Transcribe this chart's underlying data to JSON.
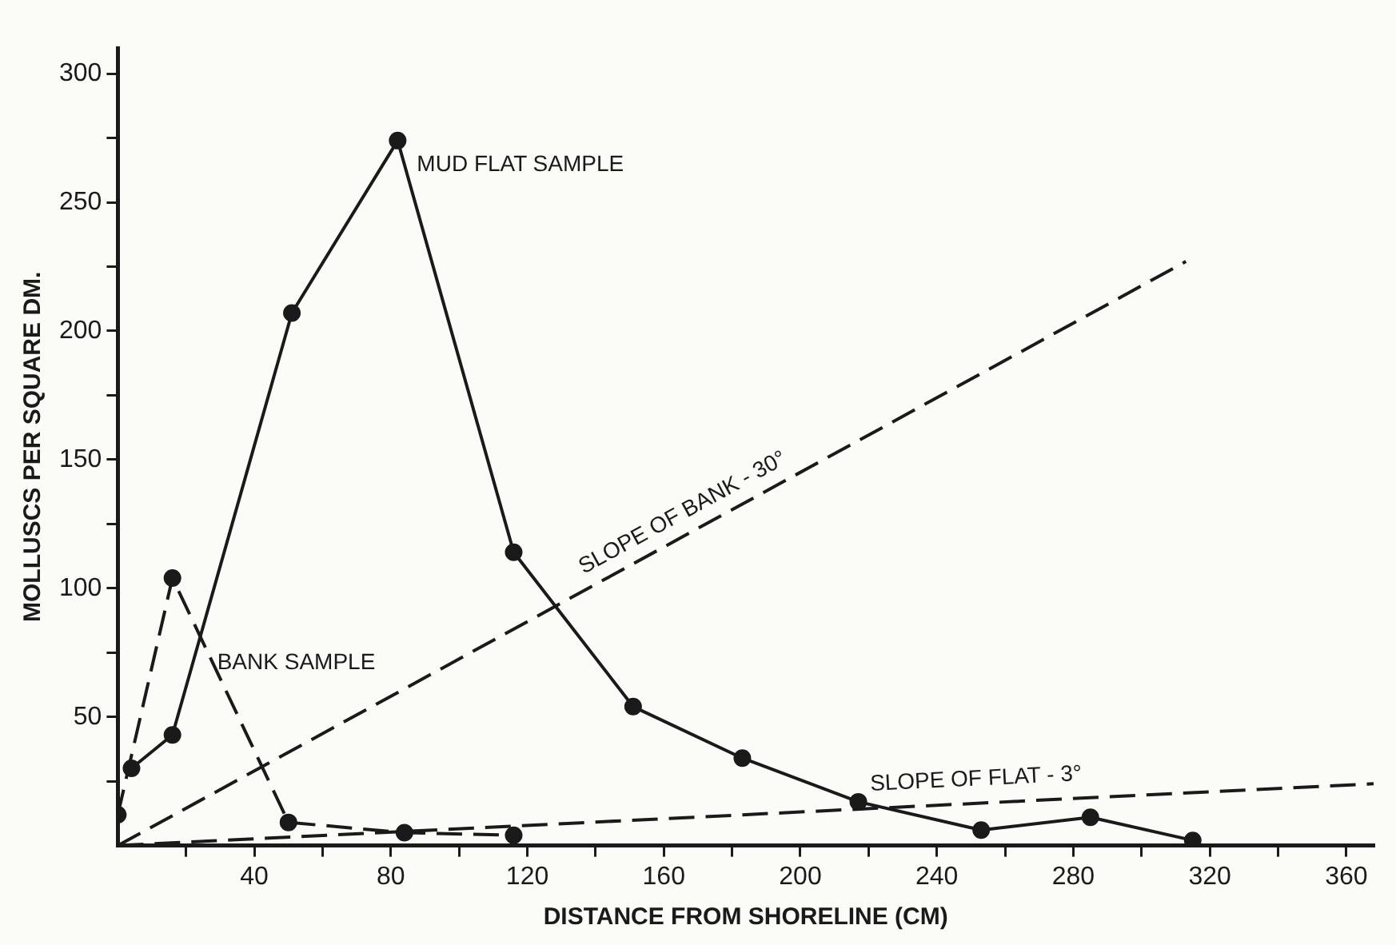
{
  "chart_data": {
    "type": "line",
    "xlabel": "DISTANCE FROM SHORELINE (CM)",
    "ylabel": "MOLLUSCS PER SQUARE DM.",
    "series": [
      {
        "name": "MUD FLAT SAMPLE",
        "color": "#1a1a1a",
        "x": [
          4,
          16,
          51,
          82,
          116,
          151,
          183,
          217,
          253,
          285,
          315
        ],
        "values": [
          30,
          43,
          207,
          274,
          114,
          54,
          34,
          17,
          6,
          11,
          2
        ],
        "marker": "circle",
        "line_style": "solid"
      },
      {
        "name": "BANK SAMPLE",
        "color": "#1a1a1a",
        "x": [
          0,
          16,
          50,
          84,
          116
        ],
        "values": [
          12,
          104,
          9,
          5,
          4
        ],
        "marker": "circle",
        "line_style": "dashed"
      },
      {
        "name": "SLOPE OF BANK - 30°",
        "color": "#1a1a1a",
        "x": [
          0,
          313
        ],
        "values": [
          0,
          227
        ],
        "marker": "none",
        "line_style": "dashed"
      },
      {
        "name": "SLOPE OF FLAT - 3°",
        "color": "#1a1a1a",
        "x": [
          0,
          368
        ],
        "values": [
          0,
          24
        ],
        "marker": "none",
        "line_style": "dashed"
      }
    ],
    "xlim": [
      0,
      368
    ],
    "xticks": [
      {
        "value": 20,
        "label": null
      },
      40,
      {
        "value": 60,
        "label": null
      },
      80,
      {
        "value": 100,
        "label": null
      },
      120,
      {
        "value": 140,
        "label": null
      },
      160,
      {
        "value": 180,
        "label": null
      },
      200,
      {
        "value": 220,
        "label": null
      },
      240,
      {
        "value": 260,
        "label": null
      },
      280,
      {
        "value": 300,
        "label": null
      },
      320,
      {
        "value": 340,
        "label": null
      },
      360
    ],
    "ylim": [
      0,
      310
    ],
    "yticks": [
      {
        "value": 25,
        "label": null
      },
      50,
      {
        "value": 75,
        "label": null
      },
      100,
      {
        "value": 125,
        "label": null
      },
      150,
      {
        "value": 175,
        "label": null
      },
      200,
      {
        "value": 225,
        "label": null
      },
      250,
      {
        "value": 275,
        "label": null
      },
      300
    ],
    "grid": false,
    "legend": false
  }
}
